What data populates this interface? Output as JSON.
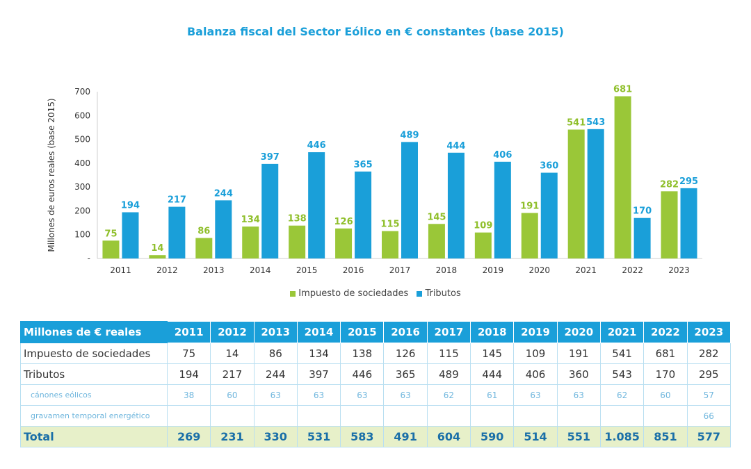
{
  "title": "Balanza fiscal del Sector Eólico en € constantes (base 2015)",
  "colors": {
    "green": "#9ac738",
    "blue": "#1a9fd9",
    "green_label": "#8fbf2b",
    "blue_label": "#1a9fd9"
  },
  "chart_data": {
    "type": "bar",
    "categories": [
      "2011",
      "2012",
      "2013",
      "2014",
      "2015",
      "2016",
      "2017",
      "2018",
      "2019",
      "2020",
      "2021",
      "2022",
      "2023"
    ],
    "series": [
      {
        "name": "Impuesto de sociedades",
        "values": [
          75,
          14,
          86,
          134,
          138,
          126,
          115,
          145,
          109,
          191,
          541,
          681,
          282
        ]
      },
      {
        "name": "Tributos",
        "values": [
          194,
          217,
          244,
          397,
          446,
          365,
          489,
          444,
          406,
          360,
          543,
          170,
          295
        ]
      }
    ],
    "ylabel": "Millones de euros reales (base 2015)",
    "ylim": [
      0,
      700
    ],
    "yticks": [
      "-",
      "100",
      "200",
      "300",
      "400",
      "500",
      "600",
      "700"
    ],
    "legend_position": "bottom"
  },
  "table": {
    "header_label": "Millones de € reales",
    "years": [
      "2011",
      "2012",
      "2013",
      "2014",
      "2015",
      "2016",
      "2017",
      "2018",
      "2019",
      "2020",
      "2021",
      "2022",
      "2023"
    ],
    "rows": [
      {
        "label": "Impuesto de sociedades",
        "kind": "main",
        "values": [
          "75",
          "14",
          "86",
          "134",
          "138",
          "126",
          "115",
          "145",
          "109",
          "191",
          "541",
          "681",
          "282"
        ]
      },
      {
        "label": "Tributos",
        "kind": "main",
        "values": [
          "194",
          "217",
          "244",
          "397",
          "446",
          "365",
          "489",
          "444",
          "406",
          "360",
          "543",
          "170",
          "295"
        ]
      },
      {
        "label": "cánones eólicos",
        "kind": "sub",
        "values": [
          "38",
          "60",
          "63",
          "63",
          "63",
          "63",
          "62",
          "61",
          "63",
          "63",
          "62",
          "60",
          "57"
        ]
      },
      {
        "label": "gravamen temporal energético",
        "kind": "sub",
        "values": [
          "",
          "",
          "",
          "",
          "",
          "",
          "",
          "",
          "",
          "",
          "",
          "",
          "66"
        ]
      },
      {
        "label": "Total",
        "kind": "total",
        "values": [
          "269",
          "231",
          "330",
          "531",
          "583",
          "491",
          "604",
          "590",
          "514",
          "551",
          "1.085",
          "851",
          "577"
        ]
      }
    ]
  }
}
